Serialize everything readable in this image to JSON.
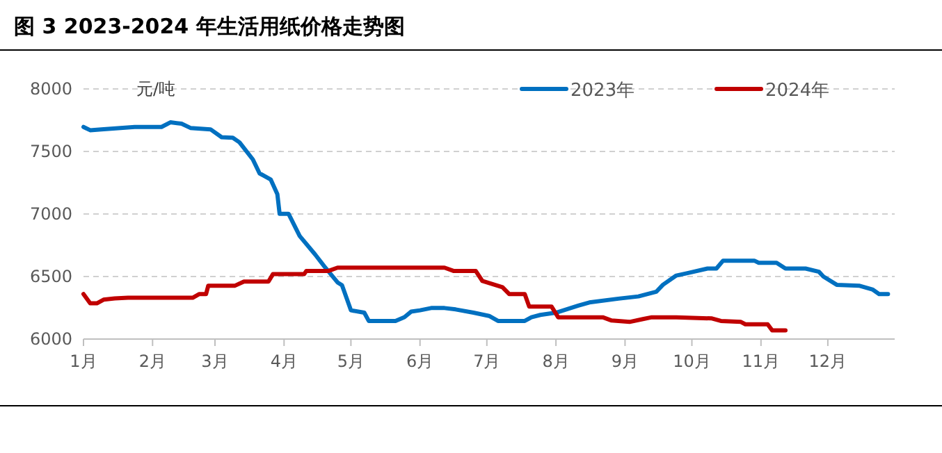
{
  "chart_data": {
    "type": "line",
    "title": "图 3 2023-2024 年生活用纸价格走势图",
    "ylabel": "元/吨",
    "xlim": [
      "--01-01",
      "--12-31"
    ],
    "xticks": [
      {
        "value": "--01-01",
        "label": "1月"
      },
      {
        "value": "--02-01",
        "label": "2月"
      },
      {
        "value": "--03-01",
        "label": "3月"
      },
      {
        "value": "--04-01",
        "label": "4月"
      },
      {
        "value": "--05-01",
        "label": "5月"
      },
      {
        "value": "--06-01",
        "label": "6月"
      },
      {
        "value": "--07-01",
        "label": "7月"
      },
      {
        "value": "--08-01",
        "label": "8月"
      },
      {
        "value": "--09-01",
        "label": "9月"
      },
      {
        "value": "--10-01",
        "label": "10月"
      },
      {
        "value": "--11-01",
        "label": "11月"
      },
      {
        "value": "--12-01",
        "label": "12月"
      }
    ],
    "ylim": [
      6000,
      8000
    ],
    "yticks": [
      6000,
      6500,
      7000,
      7500,
      8000
    ],
    "grid": "y",
    "legend": "top",
    "marker": "none",
    "line_style": "solid",
    "series": [
      {
        "name": "2023年",
        "color": "#0070c0",
        "x": [
          "--01-01",
          "--01-04",
          "--01-09",
          "--01-24",
          "--02-05",
          "--02-09",
          "--02-14",
          "--02-18",
          "--02-27",
          "--03-04",
          "--03-09",
          "--03-12",
          "--03-18",
          "--03-21",
          "--03-26",
          "--03-29",
          "--03-30",
          "--04-03",
          "--04-08",
          "--04-15",
          "--04-19",
          "--04-25",
          "--04-27",
          "--05-01",
          "--05-07",
          "--05-09",
          "--05-21",
          "--05-25",
          "--05-28",
          "--06-01",
          "--06-06",
          "--06-12",
          "--06-17",
          "--06-25",
          "--07-02",
          "--07-06",
          "--07-18",
          "--07-21",
          "--07-25",
          "--08-01",
          "--08-11",
          "--08-16",
          "--08-29",
          "--09-07",
          "--09-15",
          "--09-18",
          "--09-24",
          "--09-29",
          "--10-08",
          "--10-12",
          "--10-15",
          "--10-29",
          "--10-31",
          "--11-08",
          "--11-12",
          "--11-21",
          "--11-27",
          "--11-29",
          "--12-05",
          "--12-15",
          "--12-21",
          "--12-24",
          "--12-28"
        ],
        "values": [
          7696,
          7670,
          7677,
          7696,
          7696,
          7733,
          7722,
          7688,
          7677,
          7614,
          7610,
          7573,
          7436,
          7325,
          7276,
          7158,
          7002,
          7002,
          6824,
          6675,
          6583,
          6453,
          6430,
          6230,
          6211,
          6145,
          6145,
          6175,
          6219,
          6230,
          6248,
          6248,
          6237,
          6211,
          6185,
          6145,
          6145,
          6174,
          6193,
          6211,
          6267,
          6293,
          6323,
          6341,
          6378,
          6434,
          6508,
          6527,
          6564,
          6564,
          6627,
          6627,
          6610,
          6610,
          6564,
          6564,
          6538,
          6500,
          6434,
          6427,
          6397,
          6360,
          6360
        ]
      },
      {
        "name": "2024年",
        "color": "#c00000",
        "x": [
          "--01-01",
          "--01-04",
          "--01-07",
          "--01-10",
          "--01-15",
          "--01-21",
          "--02-19",
          "--02-22",
          "--02-25",
          "--02-26",
          "--03-10",
          "--03-14",
          "--03-25",
          "--03-27",
          "--04-10",
          "--04-11",
          "--04-21",
          "--04-25",
          "--06-12",
          "--06-16",
          "--06-26",
          "--06-29",
          "--07-08",
          "--07-11",
          "--07-18",
          "--07-20",
          "--07-30",
          "--08-02",
          "--08-22",
          "--08-26",
          "--09-03",
          "--09-09",
          "--09-13",
          "--09-24",
          "--10-10",
          "--10-14",
          "--10-23",
          "--10-25",
          "--11-04",
          "--11-06",
          "--11-12"
        ],
        "values": [
          6360,
          6286,
          6286,
          6315,
          6325,
          6330,
          6330,
          6360,
          6360,
          6427,
          6427,
          6460,
          6460,
          6519,
          6519,
          6545,
          6545,
          6571,
          6571,
          6545,
          6545,
          6464,
          6415,
          6360,
          6360,
          6260,
          6260,
          6174,
          6174,
          6148,
          6137,
          6160,
          6174,
          6174,
          6165,
          6145,
          6137,
          6118,
          6118,
          6070,
          6070
        ]
      }
    ]
  }
}
